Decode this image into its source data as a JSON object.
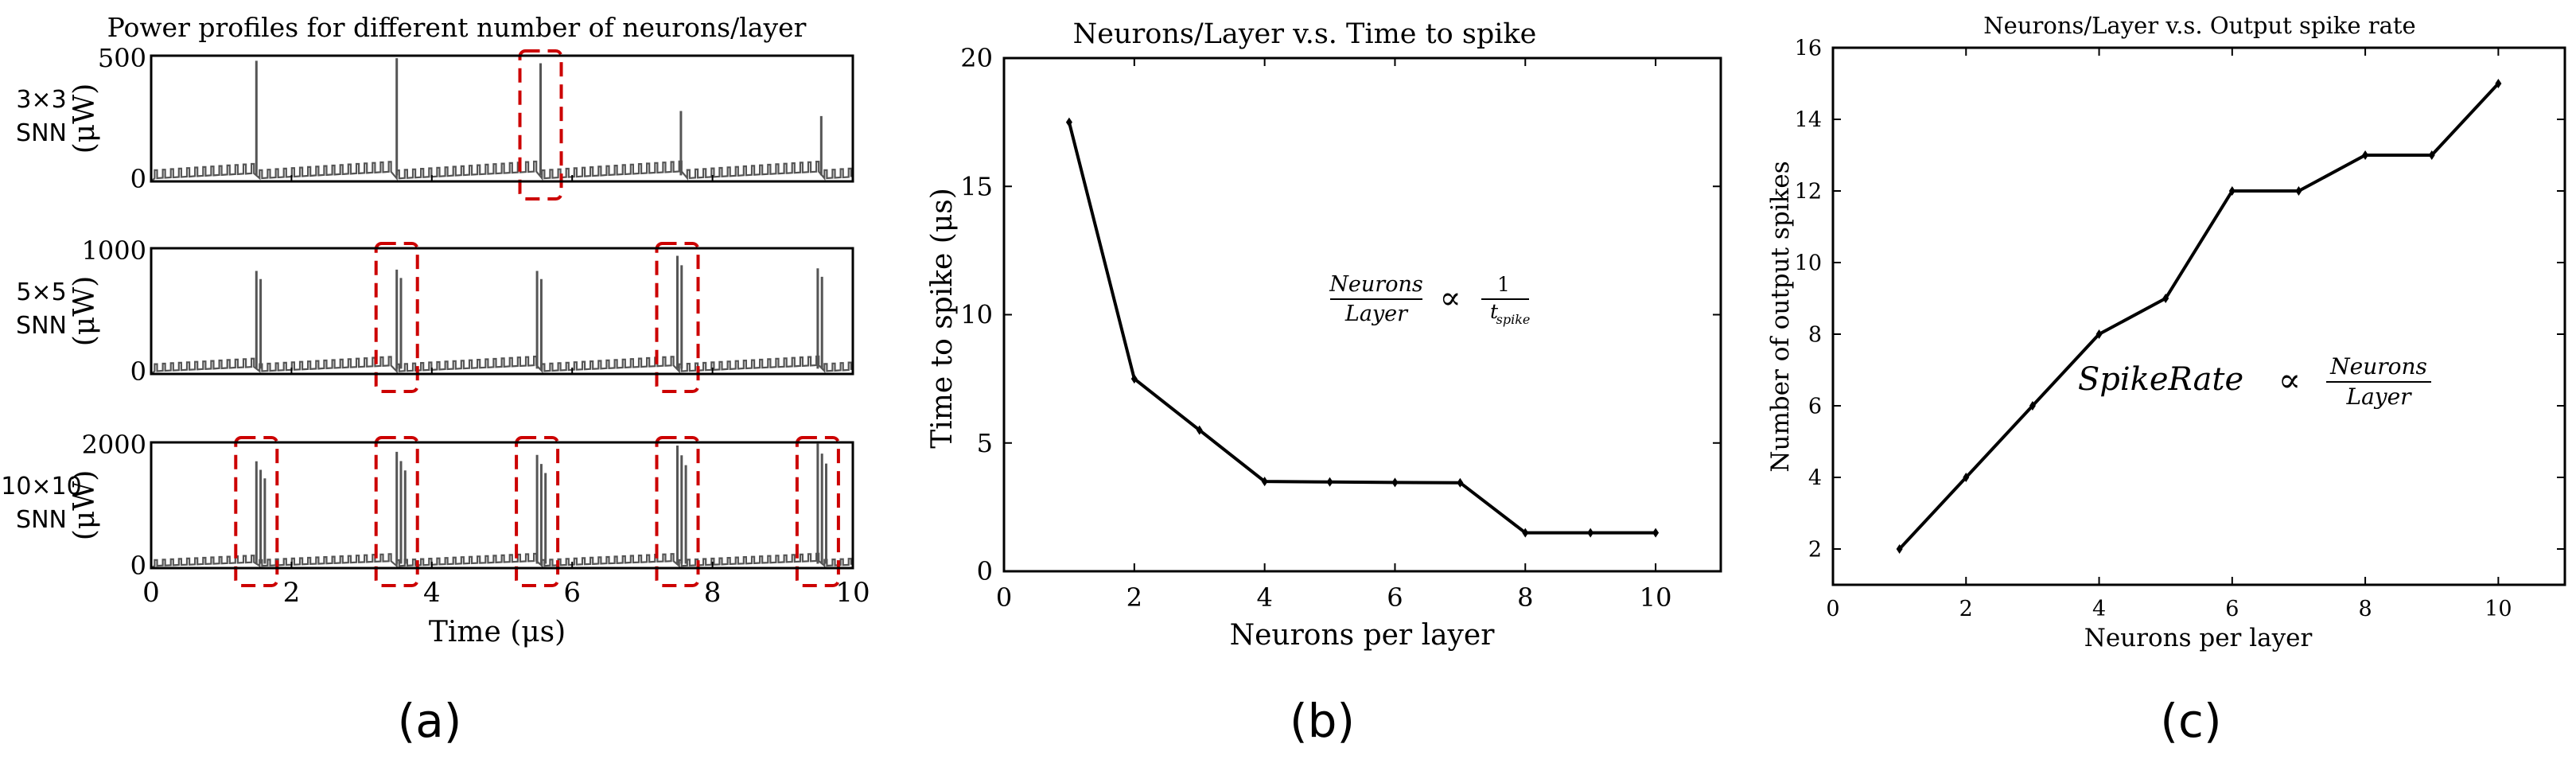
{
  "colors": {
    "axis": "#000000",
    "power_trace": "#555555",
    "highlight_box": "#cc0000",
    "line": "#000000"
  },
  "panel_labels": [
    "(a)",
    "(b)",
    "(c)"
  ],
  "chart_data": [
    {
      "id": "a",
      "type": "line",
      "title": "Power profiles for different number of neurons/layer",
      "xlabel": "Time (μs)",
      "xlim": [
        0,
        10
      ],
      "xticks": [
        "0",
        "2",
        "4",
        "6",
        "8",
        "10"
      ],
      "subplots": [
        {
          "row_label": [
            "3×3",
            "SNN"
          ],
          "ylabel": "(μW)",
          "ylim": [
            0,
            500
          ],
          "yticks": [
            "0",
            "500"
          ],
          "baseline": 80,
          "spike_times": [
            1.5,
            3.5,
            5.55,
            7.55,
            9.55
          ],
          "spike_peaks": [
            480,
            490,
            470,
            280,
            260
          ],
          "highlight_times": [
            5.55
          ]
        },
        {
          "row_label": [
            "5×5",
            "SNN"
          ],
          "ylabel": "(μW)",
          "ylim": [
            0,
            1000
          ],
          "yticks": [
            "0",
            "1000"
          ],
          "baseline": 140,
          "spike_times": [
            1.5,
            3.5,
            5.5,
            7.5,
            9.5
          ],
          "spike_peaks": [
            820,
            830,
            820,
            940,
            840
          ],
          "highlight_times": [
            3.5,
            7.5
          ]
        },
        {
          "row_label": [
            "10×10",
            "SNN"
          ],
          "ylabel": "(μW)",
          "ylim": [
            0,
            2000
          ],
          "yticks": [
            "0",
            "2000"
          ],
          "baseline": 230,
          "spike_times": [
            1.5,
            3.5,
            5.5,
            7.5,
            9.5
          ],
          "spike_peaks": [
            1700,
            1850,
            1800,
            1950,
            1980
          ],
          "highlight_times": [
            1.5,
            3.5,
            5.5,
            7.5,
            9.5
          ]
        }
      ]
    },
    {
      "id": "b",
      "type": "line",
      "title": "Neurons/Layer v.s. Time to spike",
      "xlabel": "Neurons per layer",
      "ylabel": "Time to spike (μs)",
      "xlim": [
        0,
        11
      ],
      "ylim": [
        0,
        20
      ],
      "xticks": [
        0,
        2,
        4,
        6,
        8,
        10
      ],
      "yticks": [
        0,
        5,
        10,
        15,
        20
      ],
      "x": [
        1,
        2,
        3,
        4,
        5,
        6,
        7,
        8,
        9,
        10
      ],
      "y": [
        17.5,
        7.5,
        5.5,
        3.5,
        3.48,
        3.46,
        3.45,
        1.5,
        1.5,
        1.5
      ],
      "annotation": {
        "num": "Neurons",
        "den": "Layer",
        "op": "∝",
        "rnum": "1",
        "rden": "t",
        "rden_sub": "spike"
      }
    },
    {
      "id": "c",
      "type": "line",
      "title": "Neurons/Layer v.s. Output spike rate",
      "xlabel": "Neurons per layer",
      "ylabel": "Number of output spikes",
      "xlim": [
        0,
        11
      ],
      "ylim": [
        1,
        16
      ],
      "xticks": [
        0,
        2,
        4,
        6,
        8,
        10
      ],
      "yticks": [
        2,
        4,
        6,
        8,
        10,
        12,
        14,
        16
      ],
      "x": [
        1,
        2,
        3,
        4,
        5,
        6,
        7,
        8,
        9,
        10
      ],
      "y": [
        2,
        4,
        6,
        8,
        9,
        12,
        12,
        13,
        13,
        15
      ],
      "annotation": {
        "lhs": "SpikeRate",
        "op": "∝",
        "num": "Neurons",
        "den": "Layer"
      }
    }
  ]
}
